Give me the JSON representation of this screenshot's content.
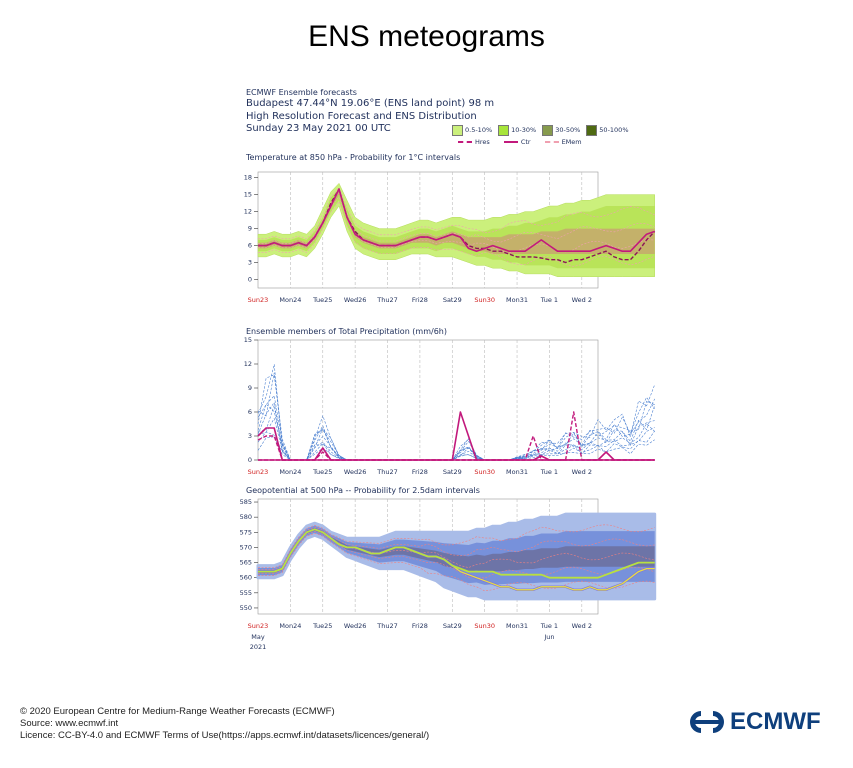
{
  "page": {
    "title": "ENS meteograms",
    "header_line1": "ECMWF Ensemble forecasts",
    "header_line2": "Budapest 47.44°N 19.06°E (ENS land point) 98 m",
    "header_line3": "High Resolution Forecast and ENS Distribution",
    "header_line4": "Sunday 23 May 2021 00 UTC",
    "legend": {
      "bands": [
        {
          "label": "0.5-10%",
          "color": "#cbf07c"
        },
        {
          "label": "10-30%",
          "color": "#a7e53a"
        },
        {
          "label": "30-50%",
          "color": "#879b4d"
        },
        {
          "label": "50-100%",
          "color": "#4f6a12"
        }
      ],
      "lines": [
        {
          "label": "Hres",
          "color": "#c2197c",
          "style": "dashed"
        },
        {
          "label": "Ctr",
          "color": "#c2197c",
          "style": "solid"
        },
        {
          "label": "EMem",
          "color": "#f0a0b0",
          "style": "dashed"
        }
      ]
    }
  },
  "footer": {
    "line1": "© 2020 European Centre for Medium-Range Weather Forecasts (ECMWF)",
    "line2": "Source: www.ecmwf.int",
    "line3": "Licence: CC-BY-4.0 and ECMWF Terms of Use(https://apps.ecmwf.int/datasets/licences/general/)",
    "logo_text": "ECMWF"
  },
  "chart_data": [
    {
      "type": "area",
      "title": "Temperature at 850 hPa - Probability for 1°C intervals",
      "x_tick_labels": [
        "Sun23",
        "Mon24",
        "Tue25",
        "Wed26",
        "Thu27",
        "Fri28",
        "Sat29",
        "Sun30",
        "Mon31",
        "Tue 1",
        "Wed 2"
      ],
      "highlighted_ticks": [
        "Sun23",
        "Sun30"
      ],
      "y_ticks": [
        0,
        3,
        6,
        9,
        12,
        15,
        18
      ],
      "ylim": [
        -1.5,
        19
      ],
      "x_step_days": 0.25,
      "series": [
        {
          "name": "Ctr",
          "values": [
            6,
            6,
            6.5,
            6,
            6,
            6.5,
            6,
            7.5,
            10,
            13,
            16,
            11,
            8,
            7,
            6.5,
            6,
            6,
            6,
            6.5,
            7,
            7.5,
            7.5,
            7,
            7.5,
            8,
            7.5,
            5.5,
            5,
            5.5,
            6,
            5.5,
            5,
            5,
            5,
            6,
            7,
            6,
            5,
            5,
            5,
            5,
            5,
            5.5,
            6,
            5.5,
            5,
            5,
            6.5,
            8,
            8.5
          ]
        },
        {
          "name": "Hres",
          "values": [
            6,
            6,
            6.5,
            6,
            6,
            6.5,
            6,
            7.5,
            10,
            13.5,
            16,
            11,
            8.5,
            7,
            6.5,
            6,
            6,
            6,
            6.5,
            7,
            7.5,
            7.5,
            7,
            7.5,
            8,
            7.5,
            6,
            5.5,
            5.5,
            5,
            5,
            4.5,
            4,
            4,
            4,
            3.8,
            3.5,
            3.5,
            3,
            3.5,
            3.5,
            4,
            4.5,
            5,
            4,
            3.5,
            3.5,
            5,
            7,
            8.5
          ]
        },
        {
          "name": "band_0.5-10_low",
          "values": [
            4,
            4,
            4.5,
            4,
            4,
            4.5,
            4,
            5.5,
            8,
            11,
            13,
            8.5,
            5.5,
            4.5,
            4,
            3.5,
            3.5,
            3.5,
            4,
            4.5,
            4.5,
            4.5,
            4,
            4,
            4,
            3.5,
            3,
            2.5,
            2.5,
            2,
            2,
            1.5,
            1.5,
            1,
            1,
            1,
            1,
            0.5,
            0.5,
            0.5,
            0.5,
            0.5,
            0.5,
            0.5,
            0.5,
            0.5,
            0.5,
            0.5,
            0.5,
            0.5
          ]
        },
        {
          "name": "band_0.5-10_high",
          "values": [
            8,
            8,
            8.5,
            8,
            8,
            8.5,
            8,
            9.5,
            12.5,
            15.5,
            17,
            14,
            11,
            10,
            9.5,
            9,
            9,
            9,
            9.5,
            10,
            10.5,
            10.5,
            10,
            10.5,
            11,
            11,
            10.5,
            10.5,
            10.5,
            11,
            11,
            11.5,
            11.5,
            12,
            12,
            12.5,
            13,
            13,
            13.5,
            13.5,
            14,
            14,
            14.5,
            15,
            15,
            15,
            15,
            15,
            15,
            15
          ]
        },
        {
          "name": "band_10-30_low",
          "values": [
            5,
            5,
            5.5,
            5,
            5,
            5.5,
            5,
            6.5,
            9,
            12,
            14,
            9.5,
            6.5,
            5.5,
            5,
            4.5,
            4.5,
            4.5,
            5,
            5.5,
            5.5,
            5.5,
            5,
            5.5,
            5.5,
            5,
            4.5,
            4,
            4,
            3.5,
            3.5,
            3,
            3,
            2.5,
            2.5,
            2.5,
            2.5,
            2,
            2,
            2,
            2,
            2,
            2,
            2,
            2,
            2,
            2,
            2,
            2,
            2
          ]
        },
        {
          "name": "band_10-30_high",
          "values": [
            7,
            7,
            7.5,
            7,
            7,
            7.5,
            7,
            8.5,
            11,
            14.5,
            16,
            12.5,
            9.5,
            8.5,
            8,
            7.5,
            7.5,
            7.5,
            8,
            8.5,
            9,
            9,
            8.5,
            9,
            9.5,
            9,
            8.5,
            8.5,
            8.5,
            9,
            9,
            9.5,
            9.5,
            10,
            10,
            10.5,
            11,
            11,
            11.5,
            11.5,
            12,
            12,
            12.5,
            13,
            13,
            13,
            13,
            13,
            13,
            13
          ]
        },
        {
          "name": "band_30-50_low",
          "values": [
            5.5,
            5.5,
            6,
            5.5,
            5.5,
            6,
            5.5,
            7,
            9.5,
            12.5,
            15,
            10.5,
            7.5,
            6.5,
            6,
            5.5,
            5.5,
            5.5,
            6,
            6.5,
            6.5,
            6.5,
            6,
            6.5,
            6.5,
            6,
            5.5,
            5,
            5,
            4.5,
            4.5,
            4.5,
            4.5,
            4.5,
            4.5,
            4.5,
            4.5,
            4.5,
            4.5,
            4.5,
            4.5,
            4.5,
            4.5,
            4.5,
            4.5,
            4.5,
            4.5,
            4.5,
            4.5,
            4.5
          ]
        },
        {
          "name": "band_30-50_high",
          "values": [
            6.5,
            6.5,
            7,
            6.5,
            6.5,
            7,
            6.5,
            8,
            10.5,
            13.5,
            16,
            11.5,
            8.5,
            7.5,
            7,
            6.5,
            6.5,
            6.5,
            7,
            7.5,
            8,
            8,
            7.5,
            8,
            8.5,
            8,
            7.5,
            7.5,
            7.5,
            7.5,
            7.5,
            8,
            8,
            8,
            8,
            8.5,
            8.5,
            8.5,
            9,
            9,
            9,
            9,
            9,
            9,
            9,
            9,
            9,
            9,
            9,
            9
          ]
        }
      ]
    },
    {
      "type": "line",
      "title": "Ensemble members of Total Precipitation (mm/6h)",
      "x_tick_labels": [
        "Sun23",
        "Mon24",
        "Tue25",
        "Wed26",
        "Thu27",
        "Fri28",
        "Sat29",
        "Sun30",
        "Mon31",
        "Tue 1",
        "Wed 2"
      ],
      "highlighted_ticks": [
        "Sun23",
        "Sun30"
      ],
      "y_ticks": [
        0,
        3,
        6,
        9,
        12,
        15
      ],
      "ylim": [
        0,
        15
      ],
      "x_step_days": 0.25,
      "series": [
        {
          "name": "Ctr",
          "values": [
            3,
            4,
            4,
            0,
            0,
            0,
            0,
            0,
            1.5,
            0,
            0,
            0,
            0,
            0,
            0,
            0,
            0,
            0,
            0,
            0,
            0,
            0,
            0,
            0,
            0,
            0,
            0,
            0,
            0,
            0,
            0,
            0,
            0,
            0,
            0,
            0.5,
            0,
            0,
            0,
            0,
            0,
            0,
            0,
            1,
            0,
            0,
            0,
            0,
            0,
            0
          ]
        },
        {
          "name": "Hres",
          "values": [
            2.5,
            3,
            3,
            0,
            0,
            0,
            0,
            0,
            1,
            0,
            0,
            0,
            0,
            0,
            0,
            0,
            0,
            0,
            0,
            0,
            0,
            0,
            0,
            0,
            0,
            0,
            0,
            0,
            0,
            0,
            0,
            0,
            0,
            0,
            0,
            0,
            0,
            0,
            0,
            0,
            0,
            0,
            0,
            0,
            0,
            0,
            0,
            0,
            0,
            0
          ]
        },
        {
          "name": "Ctr_peak_Fri",
          "values": [
            0,
            0,
            0,
            0,
            0,
            0,
            0,
            0,
            0,
            0,
            0,
            0,
            0,
            0,
            0,
            0,
            0,
            0,
            0,
            0,
            0,
            0,
            0,
            0,
            0,
            6,
            3,
            0,
            0,
            0,
            0,
            0,
            0,
            0,
            0,
            0,
            0,
            0,
            0,
            0,
            0,
            0,
            0,
            0,
            0,
            0,
            0,
            0,
            0,
            0
          ]
        },
        {
          "name": "Hres_peak_Sun30",
          "values": [
            0,
            0,
            0,
            0,
            0,
            0,
            0,
            0,
            0,
            0,
            0,
            0,
            0,
            0,
            0,
            0,
            0,
            0,
            0,
            0,
            0,
            0,
            0,
            0,
            0,
            0,
            0,
            0,
            0,
            0,
            0,
            0,
            0,
            0,
            3,
            0,
            0,
            0,
            0,
            6,
            0,
            0,
            0,
            0,
            0,
            0,
            0,
            0,
            0,
            0
          ]
        }
      ]
    },
    {
      "type": "area",
      "title": "Geopotential at 500 hPa -- Probability for 2.5dam intervals",
      "x_tick_labels": [
        "Sun23",
        "Mon24",
        "Tue25",
        "Wed26",
        "Thu27",
        "Fri28",
        "Sat29",
        "Sun30",
        "Mon31",
        "Tue 1",
        "Wed 2"
      ],
      "x_sub_labels": [
        "May",
        "2021",
        "Jun"
      ],
      "highlighted_ticks": [
        "Sun23",
        "Sun30"
      ],
      "y_ticks": [
        550,
        555,
        560,
        565,
        570,
        575,
        580,
        585
      ],
      "ylim": [
        548,
        586
      ],
      "x_step_days": 0.25,
      "series": [
        {
          "name": "Ctr",
          "values": [
            562,
            562,
            562,
            563,
            568,
            572,
            575,
            576,
            575,
            573,
            571,
            570,
            570,
            569,
            568,
            568,
            569,
            570,
            570,
            569,
            568,
            567,
            567,
            566,
            564,
            563,
            562,
            562,
            562,
            562,
            561,
            561,
            561,
            561,
            561,
            561,
            560,
            560,
            560,
            560,
            560,
            560,
            560,
            561,
            562,
            563,
            564,
            565,
            565,
            565
          ]
        },
        {
          "name": "Hres",
          "values": [
            562,
            562,
            562,
            563,
            568,
            572,
            575,
            576,
            575,
            573,
            571,
            570,
            570,
            569,
            568,
            568,
            569,
            570,
            570,
            569,
            568,
            567,
            567,
            566,
            564,
            562,
            561,
            560,
            559,
            558,
            557,
            557,
            556,
            556,
            556,
            557,
            557,
            557,
            557,
            556,
            556,
            557,
            556,
            556,
            557,
            558,
            560,
            562,
            563,
            563
          ]
        },
        {
          "name": "spread_low",
          "values": [
            560,
            560,
            560,
            561,
            566,
            570,
            573,
            574,
            573,
            571,
            569,
            567,
            566,
            565,
            564,
            563,
            563,
            563,
            563,
            562,
            561,
            560,
            559,
            557,
            556,
            555,
            554,
            554,
            553,
            553,
            553,
            553,
            553,
            553,
            553,
            553,
            553,
            553,
            553,
            553,
            553,
            553,
            553,
            553,
            553,
            553,
            553,
            553,
            553,
            553
          ]
        },
        {
          "name": "spread_high",
          "values": [
            564,
            564,
            564,
            565,
            570,
            574,
            577,
            578,
            577,
            575,
            574,
            573,
            573,
            573,
            573,
            573,
            574,
            575,
            575,
            575,
            575,
            575,
            575,
            575,
            575,
            575,
            575,
            576,
            576,
            577,
            577,
            578,
            578,
            579,
            579,
            580,
            580,
            580,
            581,
            581,
            581,
            581,
            581,
            581,
            581,
            581,
            581,
            581,
            581,
            581
          ]
        }
      ]
    }
  ]
}
